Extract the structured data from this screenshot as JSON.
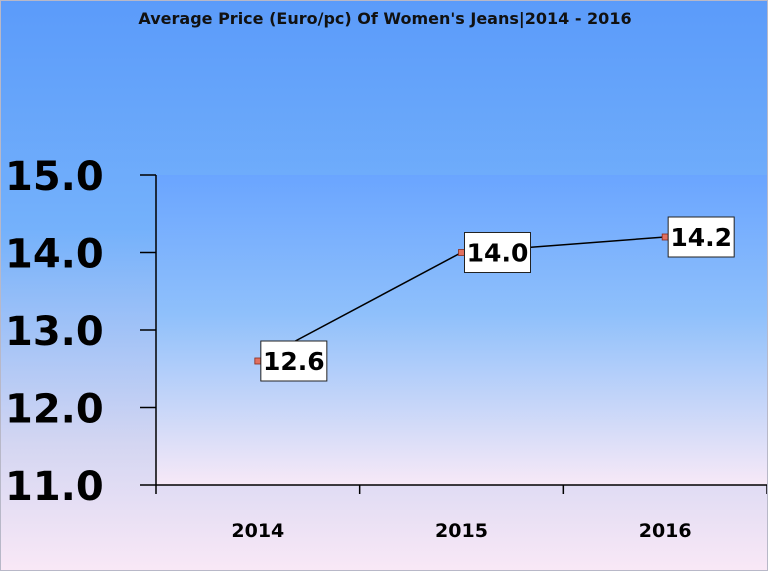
{
  "chart_data": {
    "type": "line",
    "title": "Average Price (Euro/pc) Of Women's Jeans|2014 - 2016",
    "categories": [
      "2014",
      "2015",
      "2016"
    ],
    "values": [
      12.6,
      14.0,
      14.2
    ],
    "data_labels": [
      "12.6",
      "14.0",
      "14.2"
    ],
    "y_ticks": [
      "11.0",
      "12.0",
      "13.0",
      "14.0",
      "15.0"
    ],
    "ylim": [
      11.0,
      15.0
    ],
    "xlabel": "",
    "ylabel": "",
    "grid": false,
    "legend": "none",
    "colors": {
      "line": "#000000",
      "marker_fill": "#e07060",
      "marker_stroke": "#8a2a1a",
      "plot_top": "#6aa5ff",
      "plot_bottom": "#f7e9f7"
    }
  }
}
